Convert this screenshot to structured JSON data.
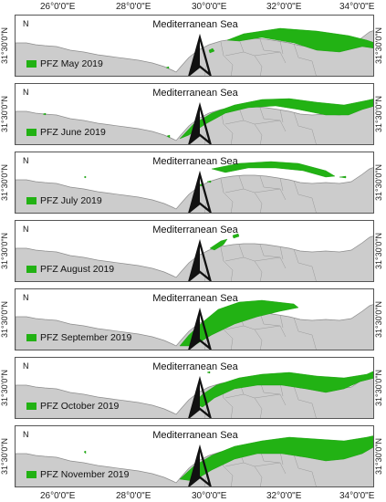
{
  "map": {
    "sea_label": "Mediterranean Sea",
    "north_label": "N",
    "lat_label": "31°30'0\"N",
    "lon_labels": [
      "26°0'0\"E",
      "28°0'0\"E",
      "30°0'0\"E",
      "32°0'0\"E",
      "34°0'0\"E"
    ],
    "colors": {
      "land": "#cccccc",
      "pfz": "#22b214",
      "border": "#9a9a9a"
    },
    "panels": [
      {
        "legend": "PFZ May 2019"
      },
      {
        "legend": "PFZ June 2019"
      },
      {
        "legend": "PFZ July 2019"
      },
      {
        "legend": "PFZ August 2019"
      },
      {
        "legend": "PFZ September 2019"
      },
      {
        "legend": "PFZ October 2019"
      },
      {
        "legend": "PFZ November 2019"
      }
    ]
  }
}
